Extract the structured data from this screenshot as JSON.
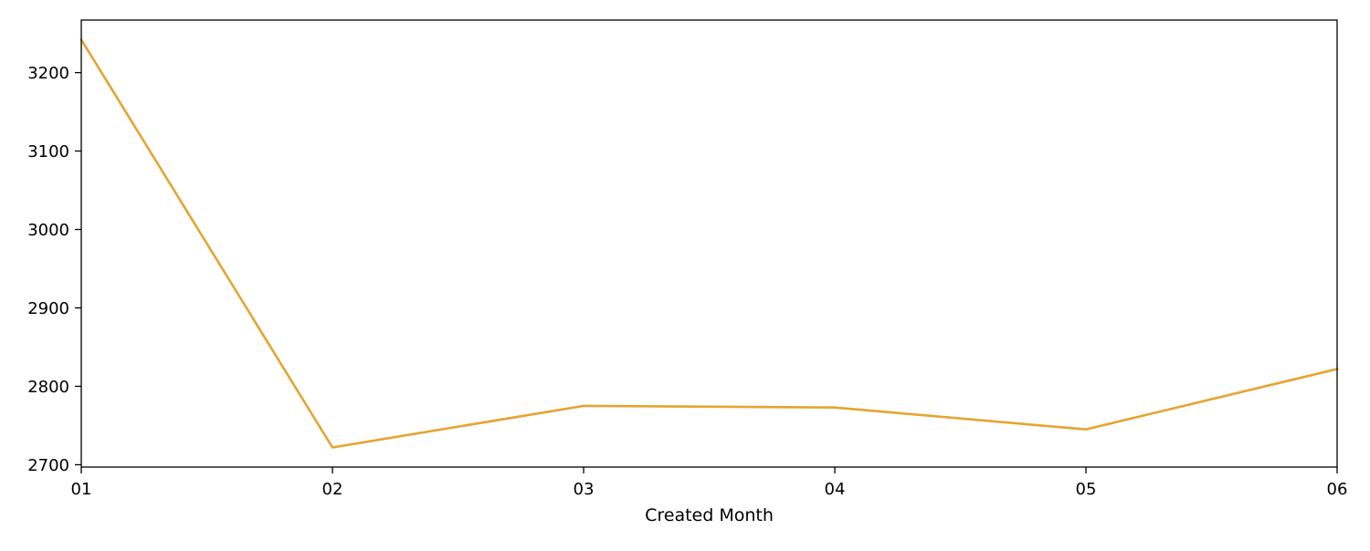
{
  "chart_data": {
    "type": "line",
    "title": "",
    "xlabel": "Created Month",
    "ylabel": "",
    "categories": [
      "01",
      "02",
      "03",
      "04",
      "05",
      "06"
    ],
    "series": [
      {
        "values": [
          3242,
          2722,
          2775,
          2773,
          2745,
          2822
        ],
        "color": "#e5a431"
      }
    ],
    "yticks": [
      2700,
      2800,
      2900,
      3000,
      3100,
      3200
    ],
    "ylim": [
      2697,
      3267
    ],
    "grid": false,
    "legend": "none"
  }
}
